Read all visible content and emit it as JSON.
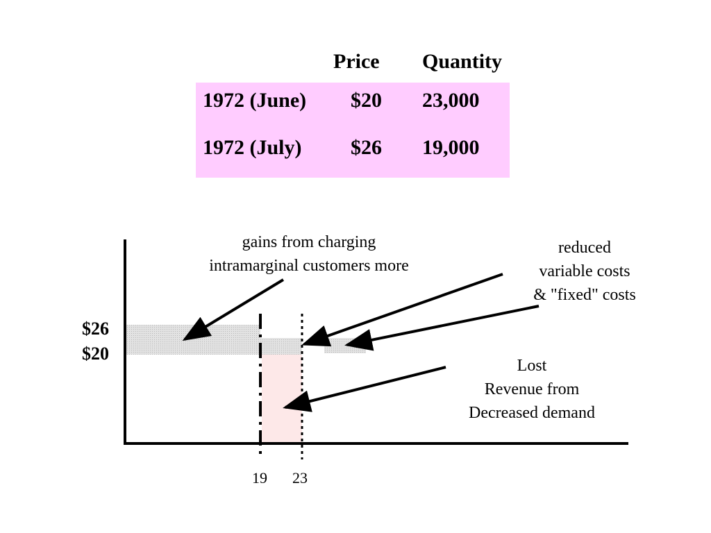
{
  "table": {
    "headers": [
      "Price",
      "Quantity"
    ],
    "rows": [
      {
        "label": "1972 (June)",
        "price": "$20",
        "quantity": "23,000"
      },
      {
        "label": "1972 (July)",
        "price": "$26",
        "quantity": "19,000"
      }
    ],
    "highlight_color": "#ffccff"
  },
  "diagram": {
    "y_ticks": [
      "$26",
      "$20"
    ],
    "x_ticks": [
      "19",
      "23"
    ],
    "annotations": {
      "gains": [
        "gains from charging",
        "intramarginal customers more"
      ],
      "reduced_costs": [
        "reduced",
        "variable costs",
        "& \"fixed\" costs"
      ],
      "lost_revenue": [
        "Lost",
        "Revenue from",
        "Decreased demand"
      ]
    },
    "colors": {
      "gain_area": "#d8d8d8",
      "lost_area": "#fde8e8",
      "axis": "#000000"
    }
  }
}
